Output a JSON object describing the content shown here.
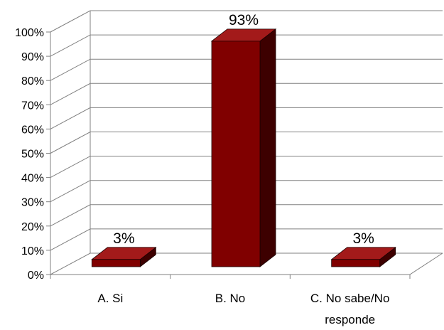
{
  "chart_data": {
    "type": "bar",
    "style": "3d-column",
    "categories": [
      [
        "A. Si"
      ],
      [
        "B. No"
      ],
      [
        "C. No sabe/No",
        "responde"
      ]
    ],
    "values": [
      3,
      93,
      3
    ],
    "data_labels": [
      "3%",
      "93%",
      "3%"
    ],
    "y_ticks": [
      "0%",
      "10%",
      "20%",
      "30%",
      "40%",
      "50%",
      "60%",
      "70%",
      "80%",
      "90%",
      "100%"
    ],
    "ylim": [
      0,
      100
    ],
    "grid": true,
    "legend": "none",
    "colors": {
      "bar_front": "#800000",
      "bar_side": "#3d0000",
      "bar_top": "#a31a1a",
      "grid": "#808080"
    }
  }
}
